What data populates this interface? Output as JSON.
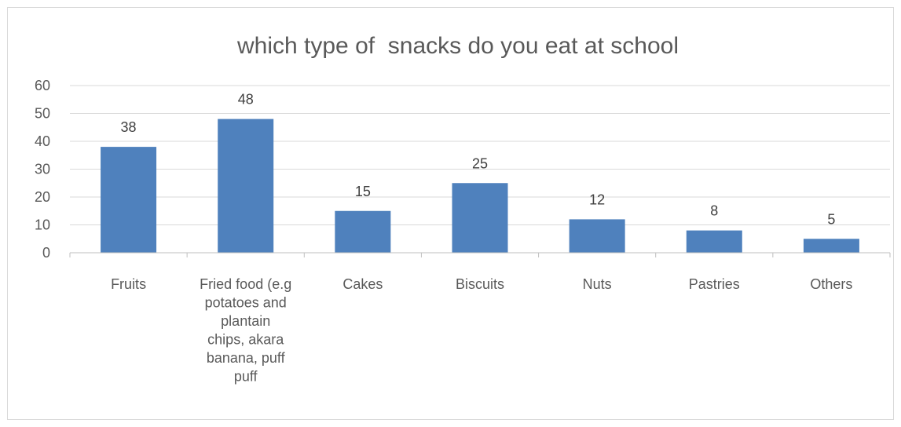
{
  "chart_data": {
    "type": "bar",
    "title": "which type of  snacks do you eat at school",
    "categories": [
      [
        "Fruits"
      ],
      [
        "Fried food (e.g",
        "potatoes and",
        "plantain",
        "chips, akara",
        "banana, puff",
        "puff"
      ],
      [
        "Cakes"
      ],
      [
        "Biscuits"
      ],
      [
        "Nuts"
      ],
      [
        "Pastries"
      ],
      [
        "Others"
      ]
    ],
    "values": [
      38,
      48,
      15,
      25,
      12,
      8,
      5
    ],
    "ylim": [
      0,
      60
    ],
    "yticks": [
      0,
      10,
      20,
      30,
      40,
      50,
      60
    ],
    "grid": true,
    "legend": "none",
    "colors": {
      "bar": "#4f81bd",
      "grid": "#d9d9d9",
      "axis": "#bfbfbf"
    }
  }
}
